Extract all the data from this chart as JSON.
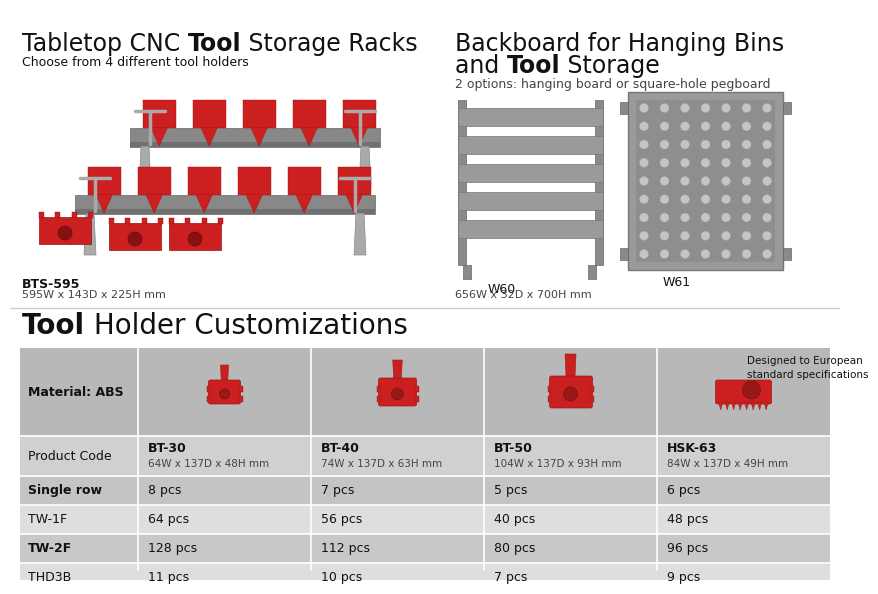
{
  "bg_color": "#ffffff",
  "subtitle_left": "Choose from 4 different tool holders",
  "code_left": "BTS-595",
  "dims_left": "595W x 143D x 225H mm",
  "subtitle_right": "2 options: hanging board or square-hole pegboard",
  "label_w60": "W60",
  "label_w61": "W61",
  "dims_right": "656W x 32D x 700H mm",
  "table_header_col0": "Material: ABS",
  "table_col1_code": "BT-30",
  "table_col1_dims": "64W x 137D x 48H mm",
  "table_col2_code": "BT-40",
  "table_col2_dims": "74W x 137D x 63H mm",
  "table_col3_code": "BT-50",
  "table_col3_dims": "104W x 137D x 93H mm",
  "table_col4_code": "HSK-63",
  "table_col4_dims": "84W x 137D x 49H mm",
  "col4_note": "Designed to European\nstandard specifications",
  "row_label_product": "Product Code",
  "rows": [
    {
      "label": "Single row",
      "values": [
        "8 pcs",
        "7 pcs",
        "5 pcs",
        "6 pcs"
      ],
      "shaded": true
    },
    {
      "label": "TW-1F",
      "values": [
        "64 pcs",
        "56 pcs",
        "40 pcs",
        "48 pcs"
      ],
      "shaded": false
    },
    {
      "label": "TW-2F",
      "values": [
        "128 pcs",
        "112 pcs",
        "80 pcs",
        "96 pcs"
      ],
      "shaded": true
    },
    {
      "label": "THD3B",
      "values": [
        "11 pcs",
        "10 pcs",
        "7 pcs",
        "9 pcs"
      ],
      "shaded": false
    }
  ],
  "text_dark": "#111111",
  "text_medium": "#444444",
  "red": "#cc2020",
  "red_dark": "#991818",
  "gray_shelf": "#888888",
  "gray_board": "#999999",
  "gray_peg": "#8a8a8a",
  "row_colors": [
    "#c0c0c0",
    "#d4d4d4",
    "#c4c4c4",
    "#dcdcdc",
    "#c8c8c8",
    "#dcdcdc"
  ],
  "divider_white": "#ffffff",
  "section_line": "#cccccc"
}
